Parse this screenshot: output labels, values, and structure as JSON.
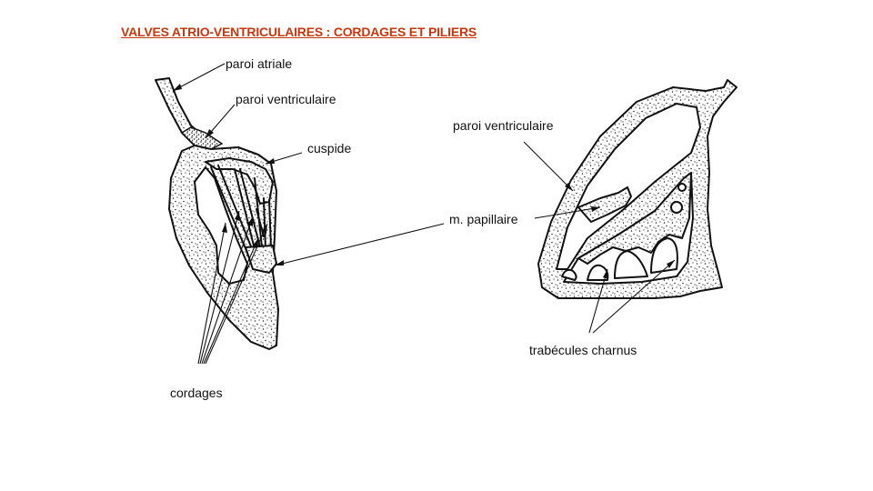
{
  "title": "VALVES ATRIO-VENTRICULAIRES : CORDAGES ET PILIERS",
  "left_figure": {
    "labels": {
      "paroi_atriale": "paroi atriale",
      "paroi_ventriculaire": "paroi ventriculaire",
      "cuspide": "cuspide",
      "cordages": "cordages"
    }
  },
  "right_figure": {
    "labels": {
      "paroi_ventriculaire": "paroi ventriculaire",
      "m_papillaire": "m. papillaire",
      "trabecules": "trabécules charnus"
    }
  },
  "colors": {
    "title": "#c8380f",
    "ink": "#111111",
    "background": "#ffffff"
  }
}
